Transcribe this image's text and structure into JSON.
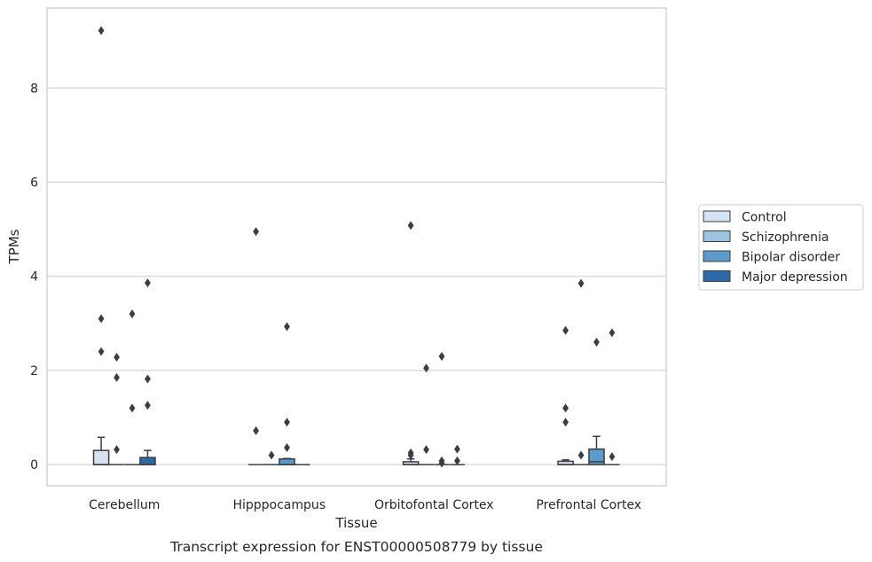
{
  "chart_data": {
    "type": "box",
    "caption": "Transcript expression for ENST00000508779 by tissue",
    "xlabel": "Tissue",
    "ylabel": "TPMs",
    "ylim": [
      -0.45,
      9.7
    ],
    "yticks": [
      0,
      2,
      4,
      6,
      8
    ],
    "grid": "horizontal",
    "legend_position": "right",
    "categories": [
      "Cerebellum",
      "Hipppocampus",
      "Orbitofontal Cortex",
      "Prefrontal Cortex"
    ],
    "series": [
      {
        "name": "Control",
        "color": "#d4e3f1",
        "boxes": [
          {
            "q1": 0,
            "median": 0,
            "q3": 0.3,
            "whisker_low": 0,
            "whisker_high": 0.58,
            "outliers": [
              9.22,
              3.1,
              2.4
            ]
          },
          {
            "q1": 0,
            "median": 0,
            "q3": 0,
            "whisker_low": 0,
            "whisker_high": 0,
            "outliers": [
              4.95,
              0.72
            ]
          },
          {
            "q1": 0,
            "median": 0,
            "q3": 0.06,
            "whisker_low": 0,
            "whisker_high": 0.12,
            "outliers": [
              5.08,
              0.25,
              0.2
            ]
          },
          {
            "q1": 0,
            "median": 0,
            "q3": 0.07,
            "whisker_low": 0,
            "whisker_high": 0.1,
            "outliers": [
              2.85,
              1.2,
              0.9
            ]
          }
        ]
      },
      {
        "name": "Schizophrenia",
        "color": "#9cc4e0",
        "boxes": [
          {
            "q1": 0,
            "median": 0,
            "q3": 0,
            "whisker_low": 0,
            "whisker_high": 0,
            "outliers": [
              2.28,
              1.85,
              0.32
            ]
          },
          {
            "q1": 0,
            "median": 0,
            "q3": 0,
            "whisker_low": 0,
            "whisker_high": 0,
            "outliers": [
              0.2
            ]
          },
          {
            "q1": 0,
            "median": 0,
            "q3": 0,
            "whisker_low": 0,
            "whisker_high": 0,
            "outliers": [
              2.05,
              0.32
            ]
          },
          {
            "q1": 0,
            "median": 0,
            "q3": 0,
            "whisker_low": 0,
            "whisker_high": 0,
            "outliers": [
              3.85,
              0.2
            ]
          }
        ]
      },
      {
        "name": "Bipolar disorder",
        "color": "#5a9bcb",
        "boxes": [
          {
            "q1": 0,
            "median": 0,
            "q3": 0,
            "whisker_low": 0,
            "whisker_high": 0,
            "outliers": [
              3.2,
              1.2
            ]
          },
          {
            "q1": 0,
            "median": 0,
            "q3": 0.12,
            "whisker_low": 0,
            "whisker_high": 0.13,
            "outliers": [
              2.93,
              0.9,
              0.36
            ]
          },
          {
            "q1": 0,
            "median": 0,
            "q3": 0,
            "whisker_low": 0,
            "whisker_high": 0,
            "outliers": [
              2.3,
              0.08,
              0.03
            ]
          },
          {
            "q1": 0,
            "median": 0.06,
            "q3": 0.33,
            "whisker_low": 0,
            "whisker_high": 0.6,
            "outliers": [
              2.6
            ]
          }
        ]
      },
      {
        "name": "Major depression",
        "color": "#2c6aa8",
        "boxes": [
          {
            "q1": 0,
            "median": 0,
            "q3": 0.15,
            "whisker_low": 0,
            "whisker_high": 0.3,
            "outliers": [
              3.86,
              1.82,
              1.26
            ]
          },
          {
            "q1": 0,
            "median": 0,
            "q3": 0,
            "whisker_low": 0,
            "whisker_high": 0,
            "outliers": []
          },
          {
            "q1": 0,
            "median": 0,
            "q3": 0,
            "whisker_low": 0,
            "whisker_high": 0,
            "outliers": [
              0.33,
              0.08
            ]
          },
          {
            "q1": 0,
            "median": 0,
            "q3": 0,
            "whisker_low": 0,
            "whisker_high": 0,
            "outliers": [
              2.8,
              0.17
            ]
          }
        ]
      }
    ]
  }
}
